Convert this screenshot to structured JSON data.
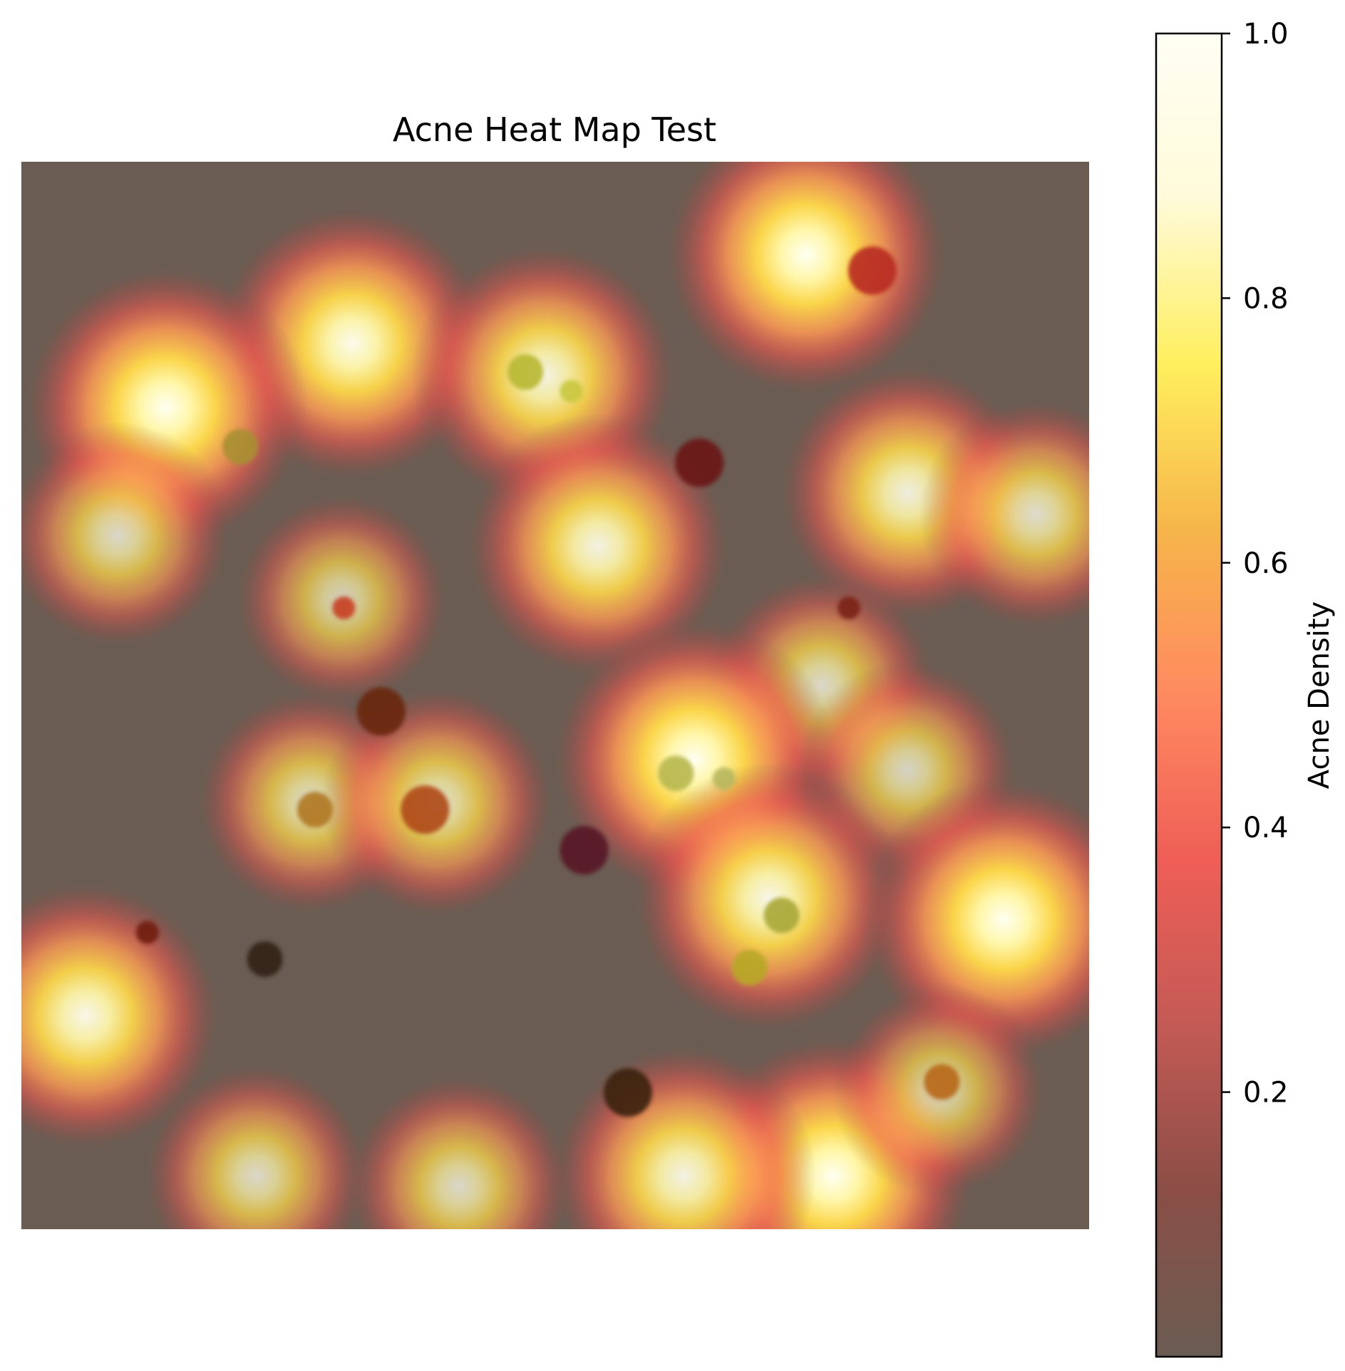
{
  "chart_data": {
    "type": "heatmap",
    "title": "Acne Heat Map Test",
    "xlabel": "",
    "ylabel": "",
    "axes_visible": false,
    "grid": false,
    "background_color": "#6a5c52",
    "colormap": "hot",
    "colormap_stops": [
      "#6a5c52",
      "#8a4e46",
      "#c45a55",
      "#ee5e56",
      "#ff8a60",
      "#f6b54a",
      "#ffef5e",
      "#fffad9",
      "#fffff4"
    ],
    "value_range": [
      0,
      1
    ],
    "colorbar": {
      "label": "Acne Density",
      "ticks": [
        0.2,
        0.4,
        0.6,
        0.8,
        1.0
      ],
      "tick_labels": [
        "0.2",
        "0.4",
        "0.6",
        "0.8",
        "1.0"
      ],
      "placement": "right"
    },
    "hotspots": [
      {
        "x": 0.735,
        "y": 0.087,
        "intensity": 1.0
      },
      {
        "x": 0.31,
        "y": 0.17,
        "intensity": 0.95
      },
      {
        "x": 0.135,
        "y": 0.23,
        "intensity": 1.0
      },
      {
        "x": 0.49,
        "y": 0.2,
        "intensity": 0.85
      },
      {
        "x": 0.54,
        "y": 0.36,
        "intensity": 0.85
      },
      {
        "x": 0.83,
        "y": 0.31,
        "intensity": 0.8
      },
      {
        "x": 0.95,
        "y": 0.33,
        "intensity": 0.6
      },
      {
        "x": 0.09,
        "y": 0.35,
        "intensity": 0.55
      },
      {
        "x": 0.3,
        "y": 0.41,
        "intensity": 0.45
      },
      {
        "x": 0.75,
        "y": 0.49,
        "intensity": 0.55
      },
      {
        "x": 0.63,
        "y": 0.56,
        "intensity": 1.0
      },
      {
        "x": 0.27,
        "y": 0.6,
        "intensity": 0.55
      },
      {
        "x": 0.39,
        "y": 0.6,
        "intensity": 0.6
      },
      {
        "x": 0.83,
        "y": 0.57,
        "intensity": 0.5
      },
      {
        "x": 0.7,
        "y": 0.69,
        "intensity": 0.9
      },
      {
        "x": 0.92,
        "y": 0.71,
        "intensity": 1.0
      },
      {
        "x": 0.06,
        "y": 0.8,
        "intensity": 0.9
      },
      {
        "x": 0.76,
        "y": 0.95,
        "intensity": 1.0
      },
      {
        "x": 0.62,
        "y": 0.95,
        "intensity": 0.85
      },
      {
        "x": 0.22,
        "y": 0.95,
        "intensity": 0.55
      },
      {
        "x": 0.41,
        "y": 0.96,
        "intensity": 0.55
      },
      {
        "x": 0.86,
        "y": 0.87,
        "intensity": 0.45
      }
    ],
    "lesions": [
      {
        "x": 0.797,
        "y": 0.102,
        "color": "#b82a20",
        "size": "large"
      },
      {
        "x": 0.472,
        "y": 0.197,
        "color": "#b8b830",
        "size": "medium"
      },
      {
        "x": 0.515,
        "y": 0.215,
        "color": "#c8c840",
        "size": "small"
      },
      {
        "x": 0.205,
        "y": 0.267,
        "color": "#a89030",
        "size": "medium"
      },
      {
        "x": 0.635,
        "y": 0.282,
        "color": "#6a1818",
        "size": "large"
      },
      {
        "x": 0.302,
        "y": 0.418,
        "color": "#c84020",
        "size": "small"
      },
      {
        "x": 0.775,
        "y": 0.418,
        "color": "#7a2418",
        "size": "small"
      },
      {
        "x": 0.337,
        "y": 0.515,
        "color": "#6a2810",
        "size": "large"
      },
      {
        "x": 0.613,
        "y": 0.573,
        "color": "#b8b850",
        "size": "medium"
      },
      {
        "x": 0.658,
        "y": 0.578,
        "color": "#b8b860",
        "size": "small"
      },
      {
        "x": 0.275,
        "y": 0.607,
        "color": "#b07820",
        "size": "medium"
      },
      {
        "x": 0.378,
        "y": 0.607,
        "color": "#b04818",
        "size": "large"
      },
      {
        "x": 0.527,
        "y": 0.645,
        "color": "#581828",
        "size": "large"
      },
      {
        "x": 0.712,
        "y": 0.706,
        "color": "#a8a838",
        "size": "medium"
      },
      {
        "x": 0.118,
        "y": 0.722,
        "color": "#701c10",
        "size": "small"
      },
      {
        "x": 0.228,
        "y": 0.747,
        "color": "#302418",
        "size": "medium"
      },
      {
        "x": 0.682,
        "y": 0.755,
        "color": "#b8a828",
        "size": "medium"
      },
      {
        "x": 0.568,
        "y": 0.872,
        "color": "#3a2410",
        "size": "large"
      },
      {
        "x": 0.862,
        "y": 0.862,
        "color": "#b86818",
        "size": "medium"
      }
    ]
  }
}
